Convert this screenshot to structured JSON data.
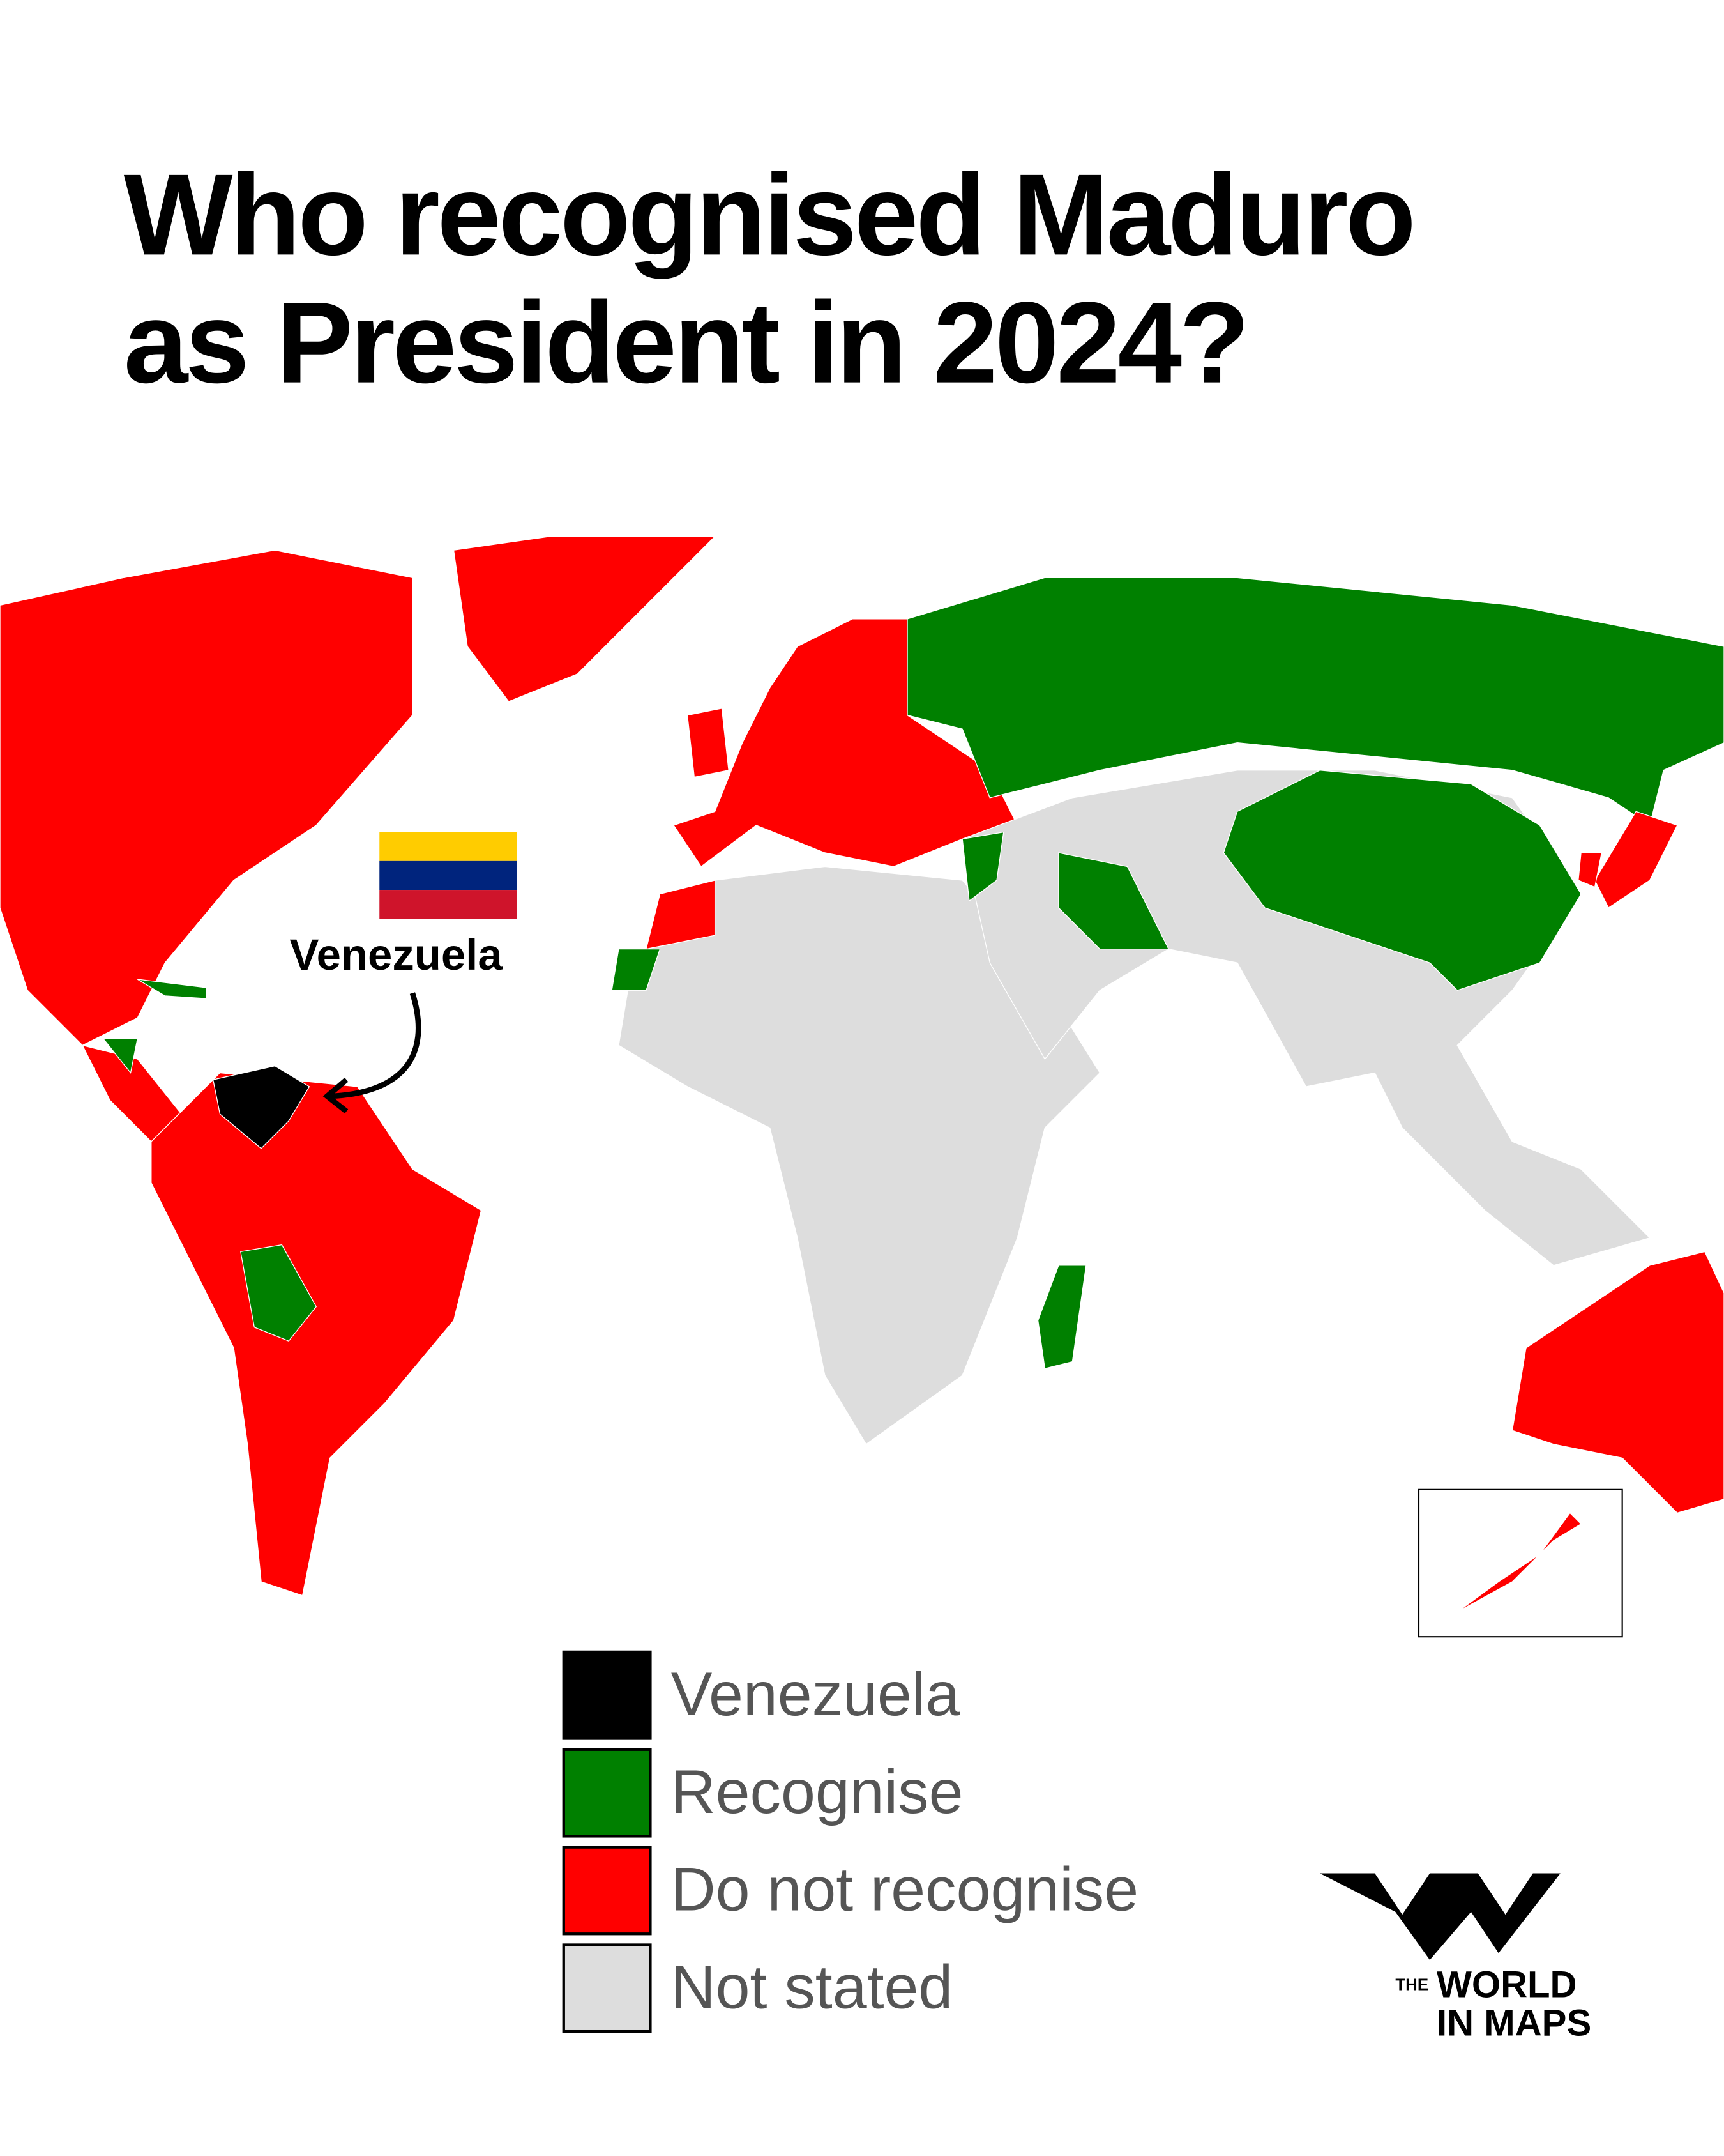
{
  "title": [
    "Who recognised Maduro",
    "as President in 2024?"
  ],
  "annotation": "Venezuela",
  "legend": [
    {
      "label": "Venezuela",
      "color": "#000000"
    },
    {
      "label": "Recognise",
      "color": "#008000"
    },
    {
      "label": "Do not recognise",
      "color": "#ff0000"
    },
    {
      "label": "Not stated",
      "color": "#dddddd"
    }
  ],
  "logo": {
    "the": "THE",
    "world": "WORLD",
    "in_maps": "IN MAPS"
  }
}
